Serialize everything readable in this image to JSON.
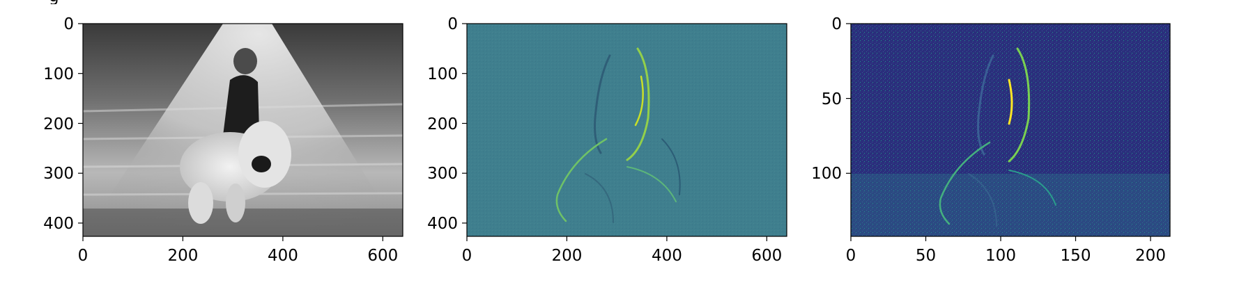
{
  "figure": {
    "clipped_title_fragment": "g"
  },
  "chart_data": [
    {
      "type": "image",
      "subject": "grayscale photo: girl walking down a dirt road dragging a large teddy bear",
      "colormap": "gray",
      "xlim": [
        0,
        640
      ],
      "ylim": [
        427,
        0
      ],
      "xticks": [
        0,
        200,
        400,
        600
      ],
      "yticks": [
        0,
        100,
        200,
        300,
        400
      ],
      "xtick_labels": [
        "0",
        "200",
        "400",
        "600"
      ],
      "ytick_labels": [
        "0",
        "100",
        "200",
        "300",
        "400"
      ]
    },
    {
      "type": "image",
      "subject": "edge-filtered response of the same photo (convolution output)",
      "colormap": "viridis",
      "xlim": [
        0,
        640
      ],
      "ylim": [
        427,
        0
      ],
      "xticks": [
        0,
        200,
        400,
        600
      ],
      "yticks": [
        0,
        100,
        200,
        300,
        400
      ],
      "xtick_labels": [
        "0",
        "200",
        "400",
        "600"
      ],
      "ytick_labels": [
        "0",
        "100",
        "200",
        "300",
        "400"
      ]
    },
    {
      "type": "image",
      "subject": "downsampled (pooled) edge response of the same photo",
      "colormap": "viridis",
      "xlim": [
        0,
        213
      ],
      "ylim": [
        142,
        0
      ],
      "xticks": [
        0,
        50,
        100,
        150,
        200
      ],
      "yticks": [
        0,
        50,
        100
      ],
      "xtick_labels": [
        "0",
        "50",
        "100",
        "150",
        "200"
      ],
      "ytick_labels": [
        "0",
        "50",
        "100"
      ]
    }
  ]
}
